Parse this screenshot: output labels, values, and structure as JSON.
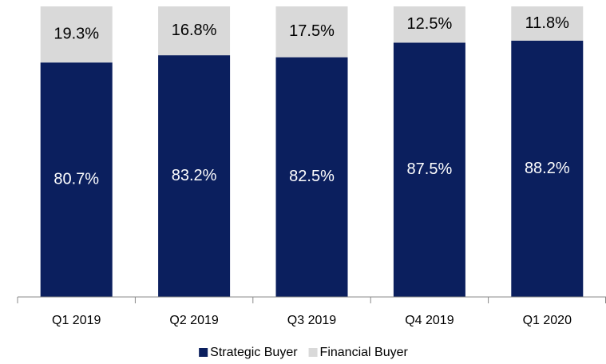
{
  "chart_data": {
    "type": "stacked_bar",
    "categories": [
      "Q1 2019",
      "Q2 2019",
      "Q3 2019",
      "Q4 2019",
      "Q1 2020"
    ],
    "series": [
      {
        "name": "Strategic Buyer",
        "color": "#0b1f5e",
        "label_color": "#ffffff",
        "values": [
          80.7,
          83.2,
          82.5,
          87.5,
          88.2
        ],
        "value_labels": [
          "80.7%",
          "83.2%",
          "82.5%",
          "87.5%",
          "88.2%"
        ]
      },
      {
        "name": "Financial Buyer",
        "color": "#d9d9d9",
        "label_color": "#000000",
        "values": [
          19.3,
          16.8,
          17.5,
          12.5,
          11.8
        ],
        "value_labels": [
          "19.3%",
          "16.8%",
          "17.5%",
          "12.5%",
          "11.8%"
        ]
      }
    ]
  }
}
